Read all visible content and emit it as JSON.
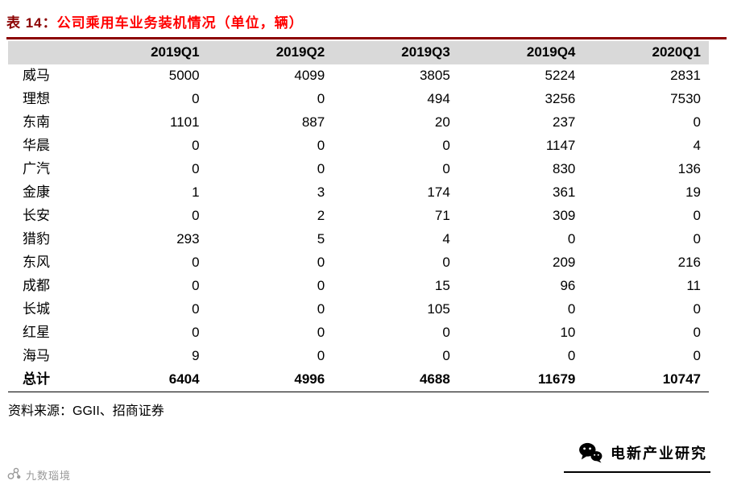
{
  "caption": {
    "prefix": "表 14：",
    "title": "公司乘用车业务装机情况（单位，辆）"
  },
  "colors": {
    "caption_prefix": "#8B0000",
    "caption_title": "#FF0000",
    "rule": "#8B0000",
    "header_bg": "#D9D9D9",
    "text": "#000000",
    "watermark_gray": "#999999"
  },
  "chart_data": {
    "type": "table",
    "title": "表 14：公司乘用车业务装机情况（单位，辆）",
    "columns": [
      "",
      "2019Q1",
      "2019Q2",
      "2019Q3",
      "2019Q4",
      "2020Q1"
    ],
    "rows": [
      {
        "name": "威马",
        "values": [
          5000,
          4099,
          3805,
          5224,
          2831
        ]
      },
      {
        "name": "理想",
        "values": [
          0,
          0,
          494,
          3256,
          7530
        ]
      },
      {
        "name": "东南",
        "values": [
          1101,
          887,
          20,
          237,
          0
        ]
      },
      {
        "name": "华晨",
        "values": [
          0,
          0,
          0,
          1147,
          4
        ]
      },
      {
        "name": "广汽",
        "values": [
          0,
          0,
          0,
          830,
          136
        ]
      },
      {
        "name": "金康",
        "values": [
          1,
          3,
          174,
          361,
          19
        ]
      },
      {
        "name": "长安",
        "values": [
          0,
          2,
          71,
          309,
          0
        ]
      },
      {
        "name": "猎豹",
        "values": [
          293,
          5,
          4,
          0,
          0
        ]
      },
      {
        "name": "东风",
        "values": [
          0,
          0,
          0,
          209,
          216
        ]
      },
      {
        "name": "成都",
        "values": [
          0,
          0,
          15,
          96,
          11
        ]
      },
      {
        "name": "长城",
        "values": [
          0,
          0,
          105,
          0,
          0
        ]
      },
      {
        "name": "红星",
        "values": [
          0,
          0,
          0,
          10,
          0
        ]
      },
      {
        "name": "海马",
        "values": [
          9,
          0,
          0,
          0,
          0
        ]
      }
    ],
    "total": {
      "name": "总计",
      "values": [
        6404,
        4996,
        4688,
        11679,
        10747
      ]
    },
    "source": "资料来源：GGII、招商证券"
  },
  "source_note": "资料来源：GGII、招商证券",
  "footer": {
    "brand": "电新产业研究",
    "watermark": "九数瑙境"
  }
}
